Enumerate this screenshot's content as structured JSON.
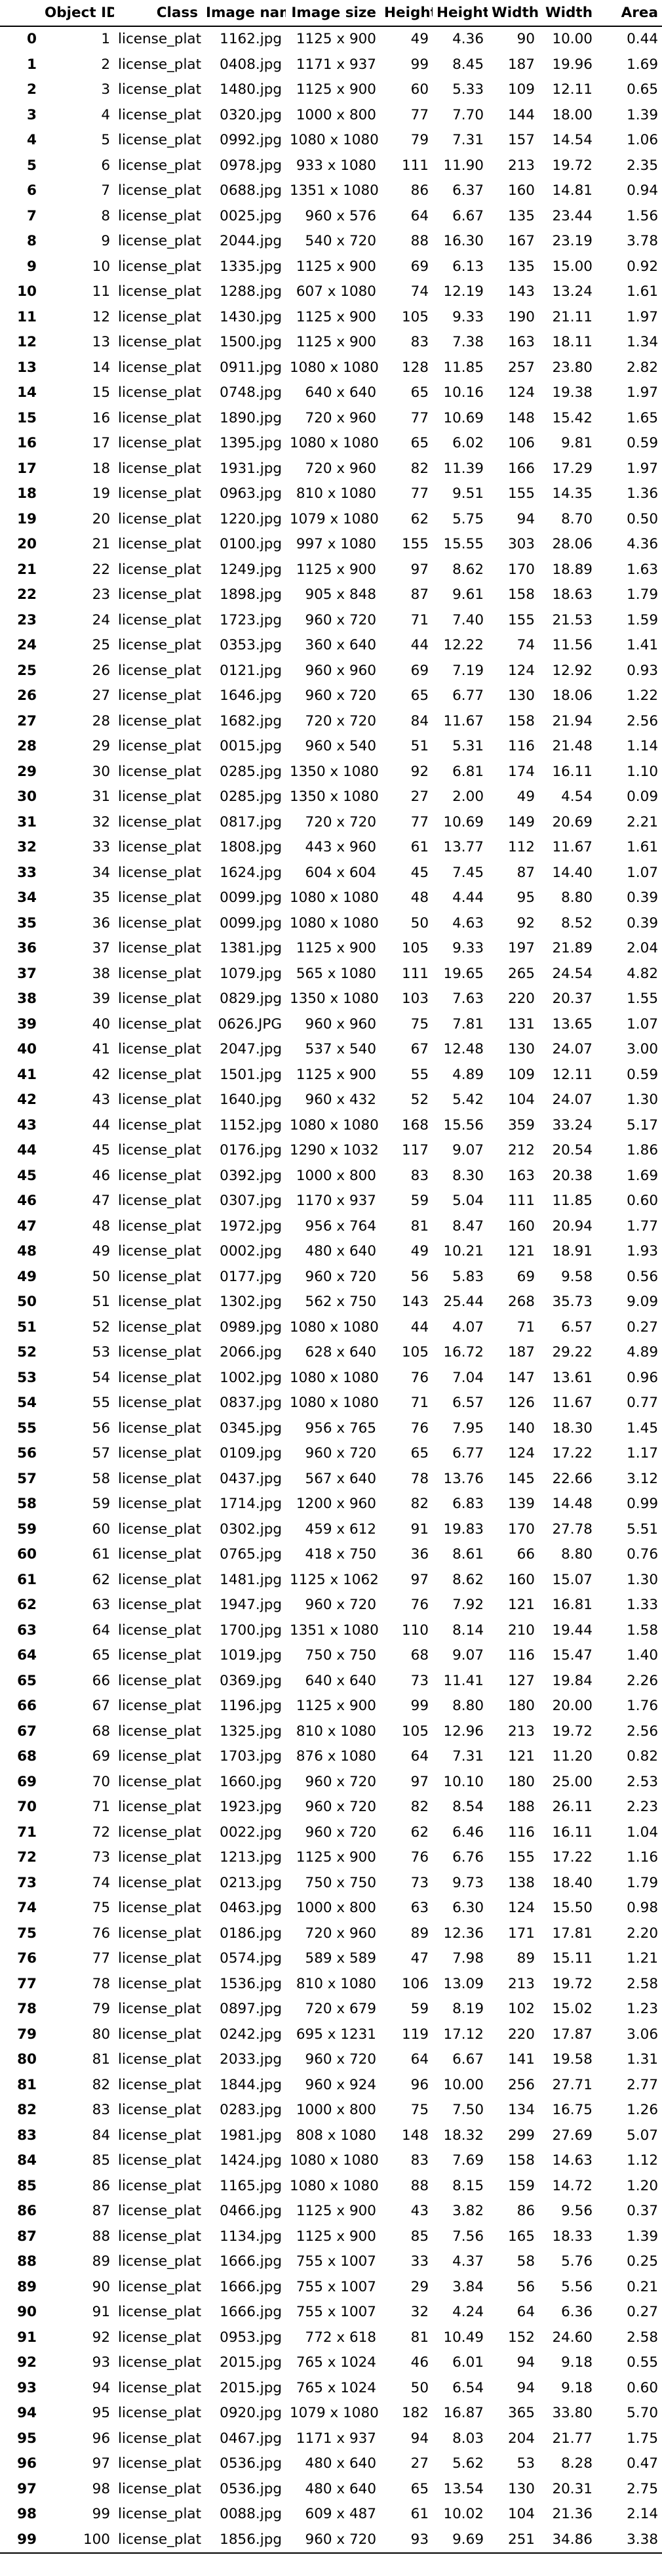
{
  "columns": [
    "",
    "Object ID",
    "Class",
    "Image name",
    "Image size",
    "Height",
    "Height",
    "Width",
    "Width",
    "Area"
  ],
  "rows": [
    [
      "0",
      "1",
      "license_plate",
      "1162.jpg",
      "1125 x 900",
      "49",
      "4.36",
      "90",
      "10.00",
      "0.44"
    ],
    [
      "1",
      "2",
      "license_plate",
      "0408.jpg",
      "1171 x 937",
      "99",
      "8.45",
      "187",
      "19.96",
      "1.69"
    ],
    [
      "2",
      "3",
      "license_plate",
      "1480.jpg",
      "1125 x 900",
      "60",
      "5.33",
      "109",
      "12.11",
      "0.65"
    ],
    [
      "3",
      "4",
      "license_plate",
      "0320.jpg",
      "1000 x 800",
      "77",
      "7.70",
      "144",
      "18.00",
      "1.39"
    ],
    [
      "4",
      "5",
      "license_plate",
      "0992.jpg",
      "1080 x 1080",
      "79",
      "7.31",
      "157",
      "14.54",
      "1.06"
    ],
    [
      "5",
      "6",
      "license_plate",
      "0978.jpg",
      "933 x 1080",
      "111",
      "11.90",
      "213",
      "19.72",
      "2.35"
    ],
    [
      "6",
      "7",
      "license_plate",
      "0688.jpg",
      "1351 x 1080",
      "86",
      "6.37",
      "160",
      "14.81",
      "0.94"
    ],
    [
      "7",
      "8",
      "license_plate",
      "0025.jpg",
      "960 x 576",
      "64",
      "6.67",
      "135",
      "23.44",
      "1.56"
    ],
    [
      "8",
      "9",
      "license_plate",
      "2044.jpg",
      "540 x 720",
      "88",
      "16.30",
      "167",
      "23.19",
      "3.78"
    ],
    [
      "9",
      "10",
      "license_plate",
      "1335.jpg",
      "1125 x 900",
      "69",
      "6.13",
      "135",
      "15.00",
      "0.92"
    ],
    [
      "10",
      "11",
      "license_plate",
      "1288.jpg",
      "607 x 1080",
      "74",
      "12.19",
      "143",
      "13.24",
      "1.61"
    ],
    [
      "11",
      "12",
      "license_plate",
      "1430.jpg",
      "1125 x 900",
      "105",
      "9.33",
      "190",
      "21.11",
      "1.97"
    ],
    [
      "12",
      "13",
      "license_plate",
      "1500.jpg",
      "1125 x 900",
      "83",
      "7.38",
      "163",
      "18.11",
      "1.34"
    ],
    [
      "13",
      "14",
      "license_plate",
      "0911.jpg",
      "1080 x 1080",
      "128",
      "11.85",
      "257",
      "23.80",
      "2.82"
    ],
    [
      "14",
      "15",
      "license_plate",
      "0748.jpg",
      "640 x 640",
      "65",
      "10.16",
      "124",
      "19.38",
      "1.97"
    ],
    [
      "15",
      "16",
      "license_plate",
      "1890.jpg",
      "720 x 960",
      "77",
      "10.69",
      "148",
      "15.42",
      "1.65"
    ],
    [
      "16",
      "17",
      "license_plate",
      "1395.jpg",
      "1080 x 1080",
      "65",
      "6.02",
      "106",
      "9.81",
      "0.59"
    ],
    [
      "17",
      "18",
      "license_plate",
      "1931.jpg",
      "720 x 960",
      "82",
      "11.39",
      "166",
      "17.29",
      "1.97"
    ],
    [
      "18",
      "19",
      "license_plate",
      "0963.jpg",
      "810 x 1080",
      "77",
      "9.51",
      "155",
      "14.35",
      "1.36"
    ],
    [
      "19",
      "20",
      "license_plate",
      "1220.jpg",
      "1079 x 1080",
      "62",
      "5.75",
      "94",
      "8.70",
      "0.50"
    ],
    [
      "20",
      "21",
      "license_plate",
      "0100.jpg",
      "997 x 1080",
      "155",
      "15.55",
      "303",
      "28.06",
      "4.36"
    ],
    [
      "21",
      "22",
      "license_plate",
      "1249.jpg",
      "1125 x 900",
      "97",
      "8.62",
      "170",
      "18.89",
      "1.63"
    ],
    [
      "22",
      "23",
      "license_plate",
      "1898.jpg",
      "905 x 848",
      "87",
      "9.61",
      "158",
      "18.63",
      "1.79"
    ],
    [
      "23",
      "24",
      "license_plate",
      "1723.jpg",
      "960 x 720",
      "71",
      "7.40",
      "155",
      "21.53",
      "1.59"
    ],
    [
      "24",
      "25",
      "license_plate",
      "0353.jpg",
      "360 x 640",
      "44",
      "12.22",
      "74",
      "11.56",
      "1.41"
    ],
    [
      "25",
      "26",
      "license_plate",
      "0121.jpg",
      "960 x 960",
      "69",
      "7.19",
      "124",
      "12.92",
      "0.93"
    ],
    [
      "26",
      "27",
      "license_plate",
      "1646.jpg",
      "960 x 720",
      "65",
      "6.77",
      "130",
      "18.06",
      "1.22"
    ],
    [
      "27",
      "28",
      "license_plate",
      "1682.jpg",
      "720 x 720",
      "84",
      "11.67",
      "158",
      "21.94",
      "2.56"
    ],
    [
      "28",
      "29",
      "license_plate",
      "0015.jpg",
      "960 x 540",
      "51",
      "5.31",
      "116",
      "21.48",
      "1.14"
    ],
    [
      "29",
      "30",
      "license_plate",
      "0285.jpg",
      "1350 x 1080",
      "92",
      "6.81",
      "174",
      "16.11",
      "1.10"
    ],
    [
      "30",
      "31",
      "license_plate",
      "0285.jpg",
      "1350 x 1080",
      "27",
      "2.00",
      "49",
      "4.54",
      "0.09"
    ],
    [
      "31",
      "32",
      "license_plate",
      "0817.jpg",
      "720 x 720",
      "77",
      "10.69",
      "149",
      "20.69",
      "2.21"
    ],
    [
      "32",
      "33",
      "license_plate",
      "1808.jpg",
      "443 x 960",
      "61",
      "13.77",
      "112",
      "11.67",
      "1.61"
    ],
    [
      "33",
      "34",
      "license_plate",
      "1624.jpg",
      "604 x 604",
      "45",
      "7.45",
      "87",
      "14.40",
      "1.07"
    ],
    [
      "34",
      "35",
      "license_plate",
      "0099.jpg",
      "1080 x 1080",
      "48",
      "4.44",
      "95",
      "8.80",
      "0.39"
    ],
    [
      "35",
      "36",
      "license_plate",
      "0099.jpg",
      "1080 x 1080",
      "50",
      "4.63",
      "92",
      "8.52",
      "0.39"
    ],
    [
      "36",
      "37",
      "license_plate",
      "1381.jpg",
      "1125 x 900",
      "105",
      "9.33",
      "197",
      "21.89",
      "2.04"
    ],
    [
      "37",
      "38",
      "license_plate",
      "1079.jpg",
      "565 x 1080",
      "111",
      "19.65",
      "265",
      "24.54",
      "4.82"
    ],
    [
      "38",
      "39",
      "license_plate",
      "0829.jpg",
      "1350 x 1080",
      "103",
      "7.63",
      "220",
      "20.37",
      "1.55"
    ],
    [
      "39",
      "40",
      "license_plate",
      "0626.JPG",
      "960 x 960",
      "75",
      "7.81",
      "131",
      "13.65",
      "1.07"
    ],
    [
      "40",
      "41",
      "license_plate",
      "2047.jpg",
      "537 x 540",
      "67",
      "12.48",
      "130",
      "24.07",
      "3.00"
    ],
    [
      "41",
      "42",
      "license_plate",
      "1501.jpg",
      "1125 x 900",
      "55",
      "4.89",
      "109",
      "12.11",
      "0.59"
    ],
    [
      "42",
      "43",
      "license_plate",
      "1640.jpg",
      "960 x 432",
      "52",
      "5.42",
      "104",
      "24.07",
      "1.30"
    ],
    [
      "43",
      "44",
      "license_plate",
      "1152.jpg",
      "1080 x 1080",
      "168",
      "15.56",
      "359",
      "33.24",
      "5.17"
    ],
    [
      "44",
      "45",
      "license_plate",
      "0176.jpg",
      "1290 x 1032",
      "117",
      "9.07",
      "212",
      "20.54",
      "1.86"
    ],
    [
      "45",
      "46",
      "license_plate",
      "0392.jpg",
      "1000 x 800",
      "83",
      "8.30",
      "163",
      "20.38",
      "1.69"
    ],
    [
      "46",
      "47",
      "license_plate",
      "0307.jpg",
      "1170 x 937",
      "59",
      "5.04",
      "111",
      "11.85",
      "0.60"
    ],
    [
      "47",
      "48",
      "license_plate",
      "1972.jpg",
      "956 x 764",
      "81",
      "8.47",
      "160",
      "20.94",
      "1.77"
    ],
    [
      "48",
      "49",
      "license_plate",
      "0002.jpg",
      "480 x 640",
      "49",
      "10.21",
      "121",
      "18.91",
      "1.93"
    ],
    [
      "49",
      "50",
      "license_plate",
      "0177.jpg",
      "960 x 720",
      "56",
      "5.83",
      "69",
      "9.58",
      "0.56"
    ],
    [
      "50",
      "51",
      "license_plate",
      "1302.jpg",
      "562 x 750",
      "143",
      "25.44",
      "268",
      "35.73",
      "9.09"
    ],
    [
      "51",
      "52",
      "license_plate",
      "0989.jpg",
      "1080 x 1080",
      "44",
      "4.07",
      "71",
      "6.57",
      "0.27"
    ],
    [
      "52",
      "53",
      "license_plate",
      "2066.jpg",
      "628 x 640",
      "105",
      "16.72",
      "187",
      "29.22",
      "4.89"
    ],
    [
      "53",
      "54",
      "license_plate",
      "1002.jpg",
      "1080 x 1080",
      "76",
      "7.04",
      "147",
      "13.61",
      "0.96"
    ],
    [
      "54",
      "55",
      "license_plate",
      "0837.jpg",
      "1080 x 1080",
      "71",
      "6.57",
      "126",
      "11.67",
      "0.77"
    ],
    [
      "55",
      "56",
      "license_plate",
      "0345.jpg",
      "956 x 765",
      "76",
      "7.95",
      "140",
      "18.30",
      "1.45"
    ],
    [
      "56",
      "57",
      "license_plate",
      "0109.jpg",
      "960 x 720",
      "65",
      "6.77",
      "124",
      "17.22",
      "1.17"
    ],
    [
      "57",
      "58",
      "license_plate",
      "0437.jpg",
      "567 x 640",
      "78",
      "13.76",
      "145",
      "22.66",
      "3.12"
    ],
    [
      "58",
      "59",
      "license_plate",
      "1714.jpg",
      "1200 x 960",
      "82",
      "6.83",
      "139",
      "14.48",
      "0.99"
    ],
    [
      "59",
      "60",
      "license_plate",
      "0302.jpg",
      "459 x 612",
      "91",
      "19.83",
      "170",
      "27.78",
      "5.51"
    ],
    [
      "60",
      "61",
      "license_plate",
      "0765.jpg",
      "418 x 750",
      "36",
      "8.61",
      "66",
      "8.80",
      "0.76"
    ],
    [
      "61",
      "62",
      "license_plate",
      "1481.jpg",
      "1125 x 1062",
      "97",
      "8.62",
      "160",
      "15.07",
      "1.30"
    ],
    [
      "62",
      "63",
      "license_plate",
      "1947.jpg",
      "960 x 720",
      "76",
      "7.92",
      "121",
      "16.81",
      "1.33"
    ],
    [
      "63",
      "64",
      "license_plate",
      "1700.jpg",
      "1351 x 1080",
      "110",
      "8.14",
      "210",
      "19.44",
      "1.58"
    ],
    [
      "64",
      "65",
      "license_plate",
      "1019.jpg",
      "750 x 750",
      "68",
      "9.07",
      "116",
      "15.47",
      "1.40"
    ],
    [
      "65",
      "66",
      "license_plate",
      "0369.jpg",
      "640 x 640",
      "73",
      "11.41",
      "127",
      "19.84",
      "2.26"
    ],
    [
      "66",
      "67",
      "license_plate",
      "1196.jpg",
      "1125 x 900",
      "99",
      "8.80",
      "180",
      "20.00",
      "1.76"
    ],
    [
      "67",
      "68",
      "license_plate",
      "1325.jpg",
      "810 x 1080",
      "105",
      "12.96",
      "213",
      "19.72",
      "2.56"
    ],
    [
      "68",
      "69",
      "license_plate",
      "1703.jpg",
      "876 x 1080",
      "64",
      "7.31",
      "121",
      "11.20",
      "0.82"
    ],
    [
      "69",
      "70",
      "license_plate",
      "1660.jpg",
      "960 x 720",
      "97",
      "10.10",
      "180",
      "25.00",
      "2.53"
    ],
    [
      "70",
      "71",
      "license_plate",
      "1923.jpg",
      "960 x 720",
      "82",
      "8.54",
      "188",
      "26.11",
      "2.23"
    ],
    [
      "71",
      "72",
      "license_plate",
      "0022.jpg",
      "960 x 720",
      "62",
      "6.46",
      "116",
      "16.11",
      "1.04"
    ],
    [
      "72",
      "73",
      "license_plate",
      "1213.jpg",
      "1125 x 900",
      "76",
      "6.76",
      "155",
      "17.22",
      "1.16"
    ],
    [
      "73",
      "74",
      "license_plate",
      "0213.jpg",
      "750 x 750",
      "73",
      "9.73",
      "138",
      "18.40",
      "1.79"
    ],
    [
      "74",
      "75",
      "license_plate",
      "0463.jpg",
      "1000 x 800",
      "63",
      "6.30",
      "124",
      "15.50",
      "0.98"
    ],
    [
      "75",
      "76",
      "license_plate",
      "0186.jpg",
      "720 x 960",
      "89",
      "12.36",
      "171",
      "17.81",
      "2.20"
    ],
    [
      "76",
      "77",
      "license_plate",
      "0574.jpg",
      "589 x 589",
      "47",
      "7.98",
      "89",
      "15.11",
      "1.21"
    ],
    [
      "77",
      "78",
      "license_plate",
      "1536.jpg",
      "810 x 1080",
      "106",
      "13.09",
      "213",
      "19.72",
      "2.58"
    ],
    [
      "78",
      "79",
      "license_plate",
      "0897.jpg",
      "720 x 679",
      "59",
      "8.19",
      "102",
      "15.02",
      "1.23"
    ],
    [
      "79",
      "80",
      "license_plate",
      "0242.jpg",
      "695 x 1231",
      "119",
      "17.12",
      "220",
      "17.87",
      "3.06"
    ],
    [
      "80",
      "81",
      "license_plate",
      "2033.jpg",
      "960 x 720",
      "64",
      "6.67",
      "141",
      "19.58",
      "1.31"
    ],
    [
      "81",
      "82",
      "license_plate",
      "1844.jpg",
      "960 x 924",
      "96",
      "10.00",
      "256",
      "27.71",
      "2.77"
    ],
    [
      "82",
      "83",
      "license_plate",
      "0283.jpg",
      "1000 x 800",
      "75",
      "7.50",
      "134",
      "16.75",
      "1.26"
    ],
    [
      "83",
      "84",
      "license_plate",
      "1981.jpg",
      "808 x 1080",
      "148",
      "18.32",
      "299",
      "27.69",
      "5.07"
    ],
    [
      "84",
      "85",
      "license_plate",
      "1424.jpg",
      "1080 x 1080",
      "83",
      "7.69",
      "158",
      "14.63",
      "1.12"
    ],
    [
      "85",
      "86",
      "license_plate",
      "1165.jpg",
      "1080 x 1080",
      "88",
      "8.15",
      "159",
      "14.72",
      "1.20"
    ],
    [
      "86",
      "87",
      "license_plate",
      "0466.jpg",
      "1125 x 900",
      "43",
      "3.82",
      "86",
      "9.56",
      "0.37"
    ],
    [
      "87",
      "88",
      "license_plate",
      "1134.jpg",
      "1125 x 900",
      "85",
      "7.56",
      "165",
      "18.33",
      "1.39"
    ],
    [
      "88",
      "89",
      "license_plate",
      "1666.jpg",
      "755 x 1007",
      "33",
      "4.37",
      "58",
      "5.76",
      "0.25"
    ],
    [
      "89",
      "90",
      "license_plate",
      "1666.jpg",
      "755 x 1007",
      "29",
      "3.84",
      "56",
      "5.56",
      "0.21"
    ],
    [
      "90",
      "91",
      "license_plate",
      "1666.jpg",
      "755 x 1007",
      "32",
      "4.24",
      "64",
      "6.36",
      "0.27"
    ],
    [
      "91",
      "92",
      "license_plate",
      "0953.jpg",
      "772 x 618",
      "81",
      "10.49",
      "152",
      "24.60",
      "2.58"
    ],
    [
      "92",
      "93",
      "license_plate",
      "2015.jpg",
      "765 x 1024",
      "46",
      "6.01",
      "94",
      "9.18",
      "0.55"
    ],
    [
      "93",
      "94",
      "license_plate",
      "2015.jpg",
      "765 x 1024",
      "50",
      "6.54",
      "94",
      "9.18",
      "0.60"
    ],
    [
      "94",
      "95",
      "license_plate",
      "0920.jpg",
      "1079 x 1080",
      "182",
      "16.87",
      "365",
      "33.80",
      "5.70"
    ],
    [
      "95",
      "96",
      "license_plate",
      "0467.jpg",
      "1171 x 937",
      "94",
      "8.03",
      "204",
      "21.77",
      "1.75"
    ],
    [
      "96",
      "97",
      "license_plate",
      "0536.jpg",
      "480 x 640",
      "27",
      "5.62",
      "53",
      "8.28",
      "0.47"
    ],
    [
      "97",
      "98",
      "license_plate",
      "0536.jpg",
      "480 x 640",
      "65",
      "13.54",
      "130",
      "20.31",
      "2.75"
    ],
    [
      "98",
      "99",
      "license_plate",
      "0088.jpg",
      "609 x 487",
      "61",
      "10.02",
      "104",
      "21.36",
      "2.14"
    ],
    [
      "99",
      "100",
      "license_plate",
      "1856.jpg",
      "960 x 720",
      "93",
      "9.69",
      "251",
      "34.86",
      "3.38"
    ]
  ]
}
